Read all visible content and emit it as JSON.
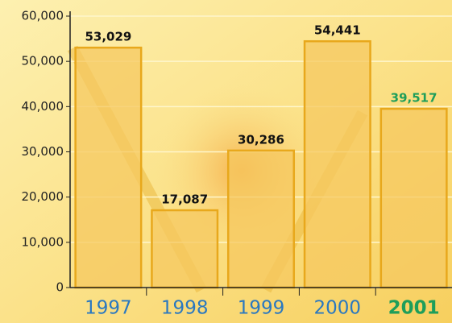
{
  "chart_data": {
    "type": "bar",
    "categories": [
      "1997",
      "1998",
      "1999",
      "2000",
      "2001"
    ],
    "values": [
      53029,
      17087,
      30286,
      54441,
      39517
    ],
    "value_labels": [
      "53,029",
      "17,087",
      "30,286",
      "54,441",
      "39,517"
    ],
    "value_label_colors": [
      "#111111",
      "#111111",
      "#111111",
      "#111111",
      "#1e9e5a"
    ],
    "category_label_colors": [
      "#2a78c0",
      "#2a78c0",
      "#2a78c0",
      "#2a78c0",
      "#1e9e5a"
    ],
    "color": "#f5c860",
    "edge_color": "#e8a81c",
    "ylim": [
      0,
      60000
    ],
    "yticks": [
      0,
      {
        "value": 10000,
        "label": "10,000"
      },
      {
        "value": 20000,
        "label": "20,000"
      },
      {
        "value": 30000,
        "label": "30,000"
      },
      {
        "value": 40000,
        "label": "40,000"
      },
      {
        "value": 50000,
        "label": "50,000"
      },
      {
        "value": 60000,
        "label": "60,000"
      }
    ],
    "grid": true
  }
}
